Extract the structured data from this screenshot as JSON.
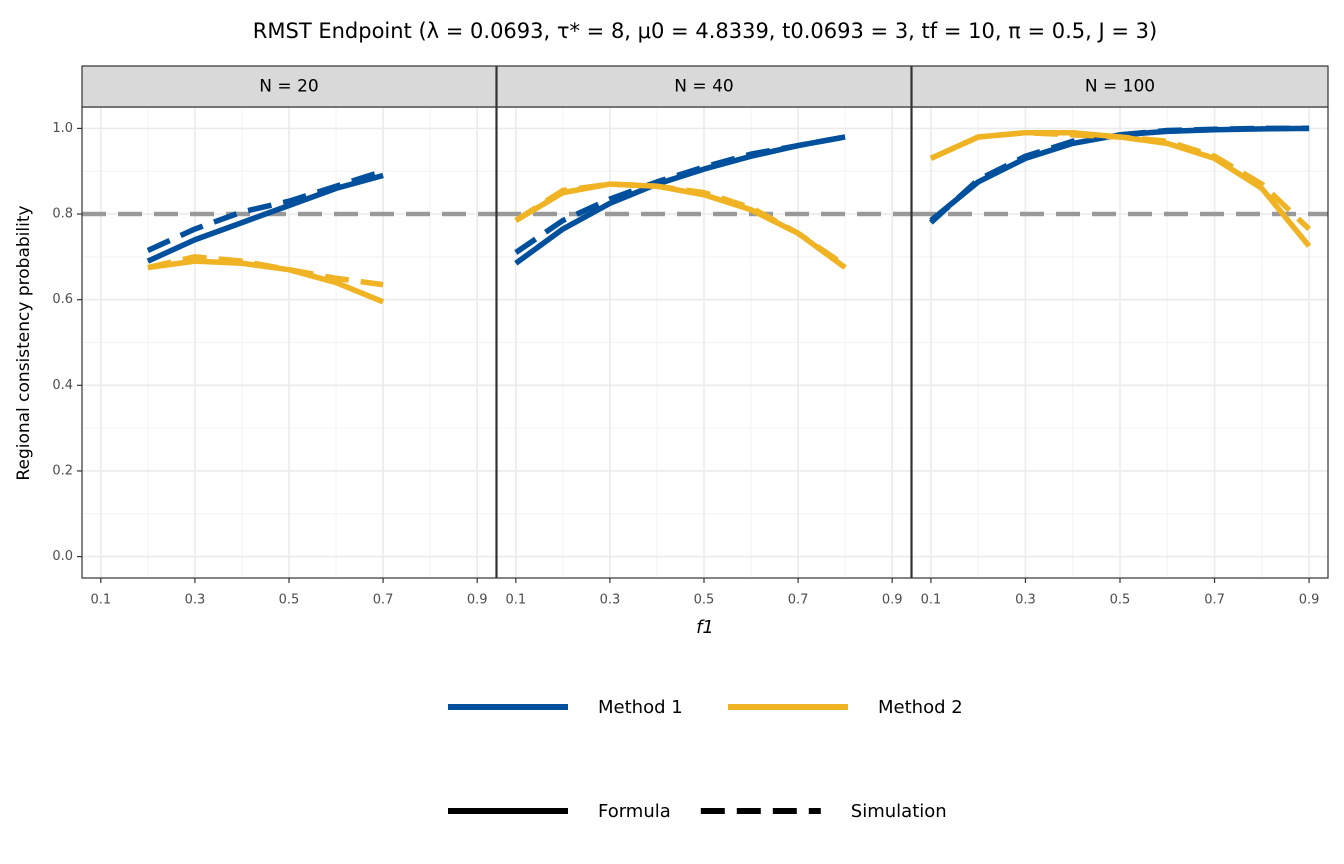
{
  "title": "RMST Endpoint  (λ = 0.0693, τ* = 8, μ0 = 4.8339, t0.0693 = 3, tf = 10, π = 0.5, J = 3)",
  "x_label": "f1",
  "y_label": "Regional consistency probability",
  "chart_data": [
    {
      "type": "line",
      "title": "N = 20",
      "x": [
        0.2,
        0.3,
        0.4,
        0.5,
        0.6,
        0.7
      ],
      "series": [
        {
          "name": "Method 1",
          "linetype": "Formula",
          "color": "#00509e",
          "values": [
            0.69,
            0.74,
            0.78,
            0.82,
            0.86,
            0.89
          ]
        },
        {
          "name": "Method 1",
          "linetype": "Simulation",
          "color": "#00509e",
          "values": [
            0.715,
            0.765,
            0.805,
            0.83,
            0.865,
            0.9
          ]
        },
        {
          "name": "Method 2",
          "linetype": "Formula",
          "color": "#f0b323",
          "values": [
            0.675,
            0.69,
            0.685,
            0.67,
            0.64,
            0.595
          ]
        },
        {
          "name": "Method 2",
          "linetype": "Simulation",
          "color": "#f0b323",
          "values": [
            0.675,
            0.7,
            0.69,
            0.67,
            0.65,
            0.635
          ]
        }
      ],
      "xlim": [
        0.06,
        0.94
      ],
      "xticks": [
        0.1,
        0.3,
        0.5,
        0.7,
        0.9
      ],
      "x_minor_ticks": [
        0.2,
        0.4,
        0.6,
        0.8
      ],
      "ylim": [
        -0.05,
        1.05
      ],
      "yticks": [
        {
          "value": 0,
          "label": "0.0"
        },
        {
          "value": 0.2,
          "label": "0.2"
        },
        {
          "value": 0.4,
          "label": "0.4"
        },
        {
          "value": 0.6,
          "label": "0.6"
        },
        {
          "value": 0.8,
          "label": "0.8"
        },
        {
          "value": 1,
          "label": "1.0"
        }
      ],
      "y_minor_ticks": [
        0.1,
        0.3,
        0.5,
        0.7,
        0.9
      ],
      "hline": 0.8,
      "hline_color": "#999999",
      "grid": true
    },
    {
      "type": "line",
      "title": "N = 40",
      "x": [
        0.1,
        0.2,
        0.3,
        0.4,
        0.5,
        0.6,
        0.7,
        0.8
      ],
      "series": [
        {
          "name": "Method 1",
          "linetype": "Formula",
          "color": "#00509e",
          "values": [
            0.685,
            0.765,
            0.825,
            0.87,
            0.905,
            0.935,
            0.96,
            0.98
          ]
        },
        {
          "name": "Method 1",
          "linetype": "Simulation",
          "color": "#00509e",
          "values": [
            0.71,
            0.785,
            0.835,
            0.875,
            0.91,
            0.94,
            0.96,
            0.98
          ]
        },
        {
          "name": "Method 2",
          "linetype": "Formula",
          "color": "#f0b323",
          "values": [
            0.785,
            0.85,
            0.87,
            0.865,
            0.845,
            0.81,
            0.755,
            0.675
          ]
        },
        {
          "name": "Method 2",
          "linetype": "Simulation",
          "color": "#f0b323",
          "values": [
            0.785,
            0.855,
            0.87,
            0.865,
            0.85,
            0.815,
            0.755,
            0.68
          ]
        }
      ],
      "xlim": [
        0.06,
        0.94
      ],
      "xticks": [
        0.1,
        0.3,
        0.5,
        0.7,
        0.9
      ],
      "x_minor_ticks": [
        0.2,
        0.4,
        0.6,
        0.8
      ],
      "ylim": [
        -0.05,
        1.05
      ],
      "yticks": [
        {
          "value": 0,
          "label": "0.0"
        },
        {
          "value": 0.2,
          "label": "0.2"
        },
        {
          "value": 0.4,
          "label": "0.4"
        },
        {
          "value": 0.6,
          "label": "0.6"
        },
        {
          "value": 0.8,
          "label": "0.8"
        },
        {
          "value": 1,
          "label": "1.0"
        }
      ],
      "y_minor_ticks": [
        0.1,
        0.3,
        0.5,
        0.7,
        0.9
      ],
      "hline": 0.8,
      "hline_color": "#999999",
      "grid": true
    },
    {
      "type": "line",
      "title": "N = 100",
      "x": [
        0.1,
        0.2,
        0.3,
        0.4,
        0.5,
        0.6,
        0.7,
        0.8,
        0.9
      ],
      "series": [
        {
          "name": "Method 1",
          "linetype": "Formula",
          "color": "#00509e",
          "values": [
            0.785,
            0.875,
            0.93,
            0.965,
            0.985,
            0.993,
            0.997,
            0.999,
            1
          ]
        },
        {
          "name": "Method 1",
          "linetype": "Simulation",
          "color": "#00509e",
          "values": [
            0.78,
            0.88,
            0.935,
            0.97,
            0.985,
            0.995,
            0.998,
            1,
            1
          ]
        },
        {
          "name": "Method 2",
          "linetype": "Formula",
          "color": "#f0b323",
          "values": [
            0.93,
            0.98,
            0.99,
            0.99,
            0.98,
            0.965,
            0.93,
            0.86,
            0.725
          ]
        },
        {
          "name": "Method 2",
          "linetype": "Simulation",
          "color": "#f0b323",
          "values": [
            0.93,
            0.98,
            0.99,
            0.985,
            0.98,
            0.97,
            0.935,
            0.87,
            0.765
          ]
        }
      ],
      "xlim": [
        0.06,
        0.94
      ],
      "xticks": [
        0.1,
        0.3,
        0.5,
        0.7,
        0.9
      ],
      "x_minor_ticks": [
        0.2,
        0.4,
        0.6,
        0.8
      ],
      "ylim": [
        -0.05,
        1.05
      ],
      "yticks": [
        {
          "value": 0,
          "label": "0.0"
        },
        {
          "value": 0.2,
          "label": "0.2"
        },
        {
          "value": 0.4,
          "label": "0.4"
        },
        {
          "value": 0.6,
          "label": "0.6"
        },
        {
          "value": 0.8,
          "label": "0.8"
        },
        {
          "value": 1,
          "label": "1.0"
        }
      ],
      "y_minor_ticks": [
        0.1,
        0.3,
        0.5,
        0.7,
        0.9
      ],
      "hline": 0.8,
      "hline_color": "#999999",
      "grid": true
    }
  ]
}
